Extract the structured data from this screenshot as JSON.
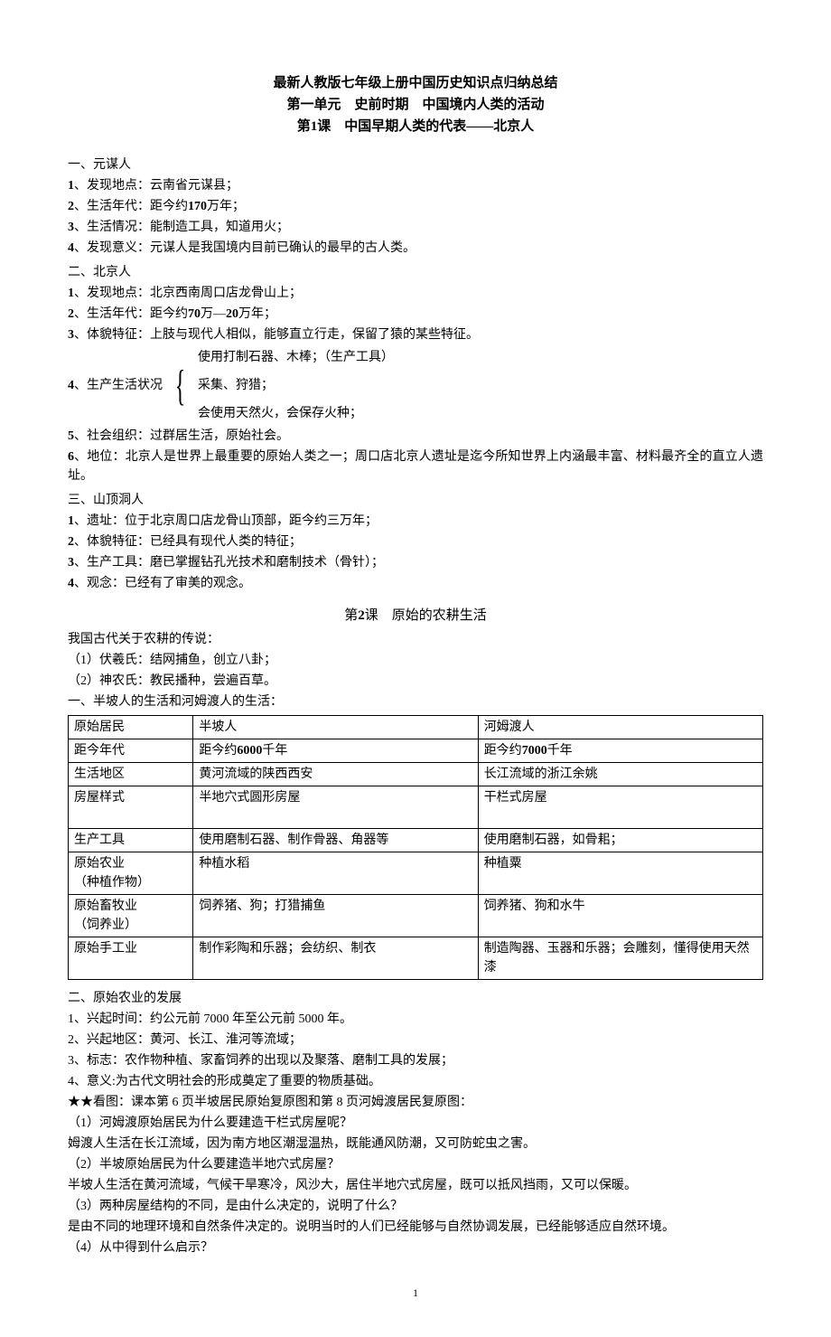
{
  "header": {
    "line1": "最新人教版七年级上册中国历史知识点归纳总结",
    "line2": "第一单元　史前时期　中国境内人类的活动",
    "line3_prefix": "第",
    "line3_num": "1",
    "line3_suffix": "课　中国早期人类的代表——北京人"
  },
  "sec1": {
    "title": "一、元谋人",
    "items": [
      {
        "n": "1",
        "label": "、发现地点：云南省元谋县；"
      },
      {
        "n": "2",
        "label_prefix": "、生活年代：距今约",
        "bold": "170",
        "label_suffix": "万年；"
      },
      {
        "n": "3",
        "label": "、生活情况：能制造工具，知道用火；"
      },
      {
        "n": "4",
        "label": "、发现意义：元谋人是我国境内目前已确认的最早的古人类。"
      }
    ]
  },
  "sec2": {
    "title": "二、北京人",
    "items": [
      {
        "n": "1",
        "label": "、发现地点：北京西南周口店龙骨山上；"
      },
      {
        "n": "2",
        "label_prefix": "、生活年代：距今约",
        "bold1": "70",
        "mid": "万—",
        "bold2": "20",
        "label_suffix": "万年；"
      },
      {
        "n": "3",
        "label": "、体貌特征：上肢与现代人相似，能够直立行走，保留了猿的某些特征。"
      }
    ],
    "bracket_label_n": "4",
    "bracket_label": "、生产生活状况",
    "bracket_items": [
      "使用打制石器、木棒；（生产工具）",
      "采集、狩猎；",
      "会使用天然火，会保存火种；"
    ],
    "item5_n": "5",
    "item5": "、社会组织：过群居生活，原始社会。",
    "item6_n": "6",
    "item6": "、地位：北京人是世界上最重要的原始人类之一；周口店北京人遗址是迄今所知世界上内涵最丰富、材料最齐全的直立人遗址。"
  },
  "sec3": {
    "title": "三、山顶洞人",
    "items": [
      {
        "n": "1",
        "label": "、遗址：位于北京周口店龙骨山顶部，距今约三万年；"
      },
      {
        "n": "2",
        "label": "、体貌特征：已经具有现代人类的特征；"
      },
      {
        "n": "3",
        "label": "、生产工具：磨已掌握钻孔光技术和磨制技术（骨针）；"
      },
      {
        "n": "4",
        "label": "、观念：已经有了审美的观念。"
      }
    ]
  },
  "lesson2": {
    "prefix": "第",
    "num": "2",
    "suffix": "课　原始的农耕生活"
  },
  "sec4": {
    "intro": "我国古代关于农耕的传说：",
    "items": [
      "（1）伏羲氏：结网捕鱼，创立八卦；",
      "（2）神农氏：教民播种，尝遍百草。"
    ],
    "subtitle": "一、半坡人的生活和河姆渡人的生活："
  },
  "table": {
    "rows": [
      [
        "原始居民",
        "半坡人",
        "河姆渡人"
      ],
      [
        "距今年代",
        {
          "prefix": "距今约",
          "bold": "6000",
          "suffix": "千年"
        },
        {
          "prefix": "距今约",
          "bold": "7000",
          "suffix": "千年"
        }
      ],
      [
        "生活地区",
        "黄河流域的陕西西安",
        "长江流域的浙江余姚"
      ],
      [
        "房屋样式",
        "半地穴式圆形房屋\n　",
        "干栏式房屋"
      ],
      [
        "生产工具",
        "使用磨制石器、制作骨器、角器等",
        "使用磨制石器，如骨耜；"
      ],
      [
        "原始农业\n（种植作物）",
        "种植水稻",
        "种植粟"
      ],
      [
        "原始畜牧业\n（饲养业）",
        "饲养猪、狗；打猎捕鱼",
        "饲养猪、狗和水牛"
      ],
      [
        "原始手工业",
        "制作彩陶和乐器；会纺织、制衣",
        "制造陶器、玉器和乐器；会雕刻，懂得使用天然漆"
      ]
    ]
  },
  "sec5": {
    "title": "二、原始农业的发展",
    "items": [
      "1、兴起时间：约公元前 7000 年至公元前 5000 年。",
      "2、兴起地区：黄河、长江、淮河等流域；",
      "3、标志：农作物种植、家畜饲养的出现以及聚落、磨制工具的发展；",
      "4、意义:为古代文明社会的形成奠定了重要的物质基础。"
    ],
    "star_line": "★★看图：课本第 6 页半坡居民原始复原图和第 8 页河姆渡居民复原图：",
    "qa": [
      "（1）河姆渡原始居民为什么要建造干栏式房屋呢？",
      "姆渡人生活在长江流域，因为南方地区潮湿温热，既能通风防潮，又可防蛇虫之害。",
      "（2）半坡原始居民为什么要建造半地穴式房屋？",
      "半坡人生活在黄河流域，气候干旱寒冷，风沙大，居住半地穴式房屋，既可以抵风挡雨，又可以保暖。",
      "（3）两种房屋结构的不同，是由什么决定的，说明了什么？",
      "是由不同的地理环境和自然条件决定的。说明当时的人们已经能够与自然协调发展，已经能够适应自然环境。",
      "（4）从中得到什么启示？"
    ]
  },
  "page_num": "1"
}
